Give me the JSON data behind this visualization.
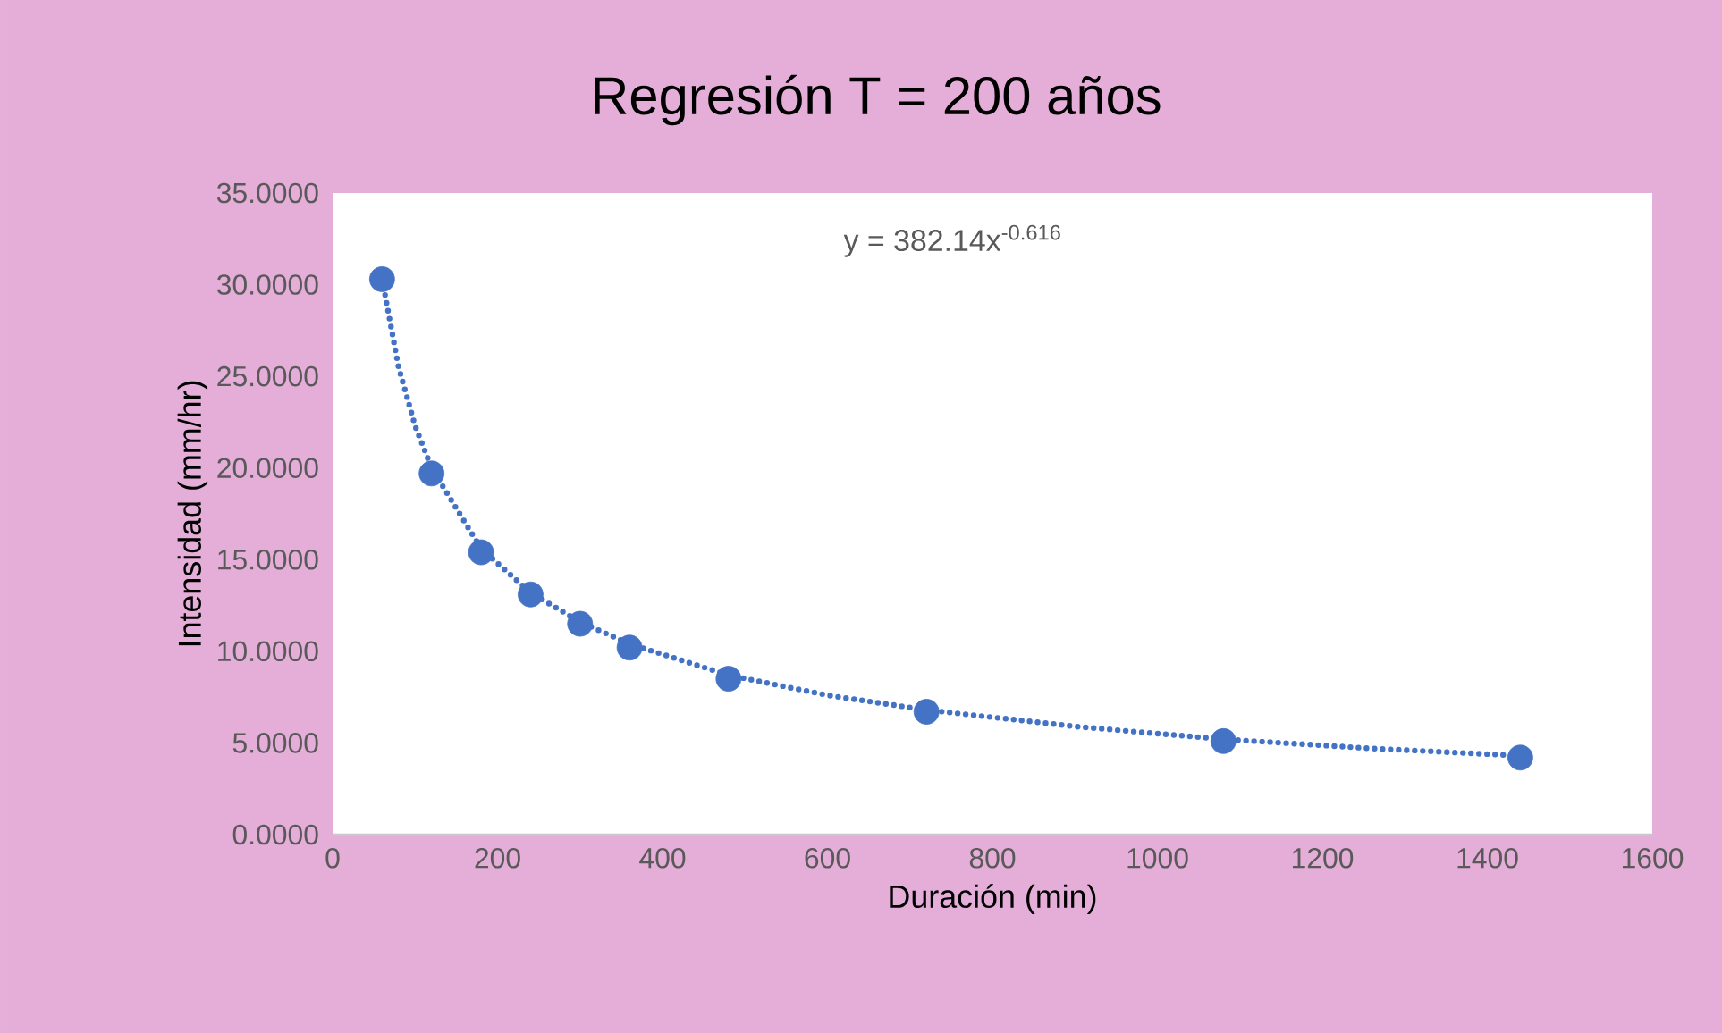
{
  "chart_data": {
    "type": "scatter",
    "title": "Regresión T = 200 años",
    "xlabel": "Duración (min)",
    "ylabel": "Intensidad (mm/hr)",
    "annotations": [
      "y = 382.14x$^{-0.616}$"
    ],
    "xlim": [
      0,
      1600
    ],
    "xticks": [
      0,
      200,
      400,
      600,
      800,
      1000,
      1200,
      1400,
      1600
    ],
    "ylim": [
      0,
      35
    ],
    "yticks": [
      {
        "value": 0,
        "label": "0.0000"
      },
      {
        "value": 5,
        "label": "5.0000"
      },
      {
        "value": 10,
        "label": "10.0000"
      },
      {
        "value": 15,
        "label": "15.0000"
      },
      {
        "value": 20,
        "label": "20.0000"
      },
      {
        "value": 25,
        "label": "25.0000"
      },
      {
        "value": 30,
        "label": "30.0000"
      },
      {
        "value": 35,
        "label": "35.0000"
      }
    ],
    "grid": false,
    "legend": false,
    "series": [
      {
        "color": "#4472c4",
        "marker": "circle",
        "x": [
          60,
          120,
          180,
          240,
          300,
          360,
          480,
          720,
          1080,
          1440
        ],
        "values": [
          30.3,
          19.7,
          15.4,
          13.1,
          11.5,
          10.2,
          8.5,
          6.7,
          5.1,
          4.2
        ]
      },
      {
        "type": "line",
        "color": "#4472c4",
        "marker": "none",
        "line_style": "dotted",
        "x": [
          60,
          80,
          100,
          120,
          180,
          240,
          300,
          360,
          480,
          600,
          720,
          900,
          1080,
          1260,
          1440
        ],
        "values": [
          30.3,
          25.5,
          22.3,
          20,
          15.6,
          13.2,
          11.6,
          10.4,
          8.7,
          7.6,
          6.8,
          5.9,
          5.2,
          4.7,
          4.3
        ]
      }
    ]
  }
}
